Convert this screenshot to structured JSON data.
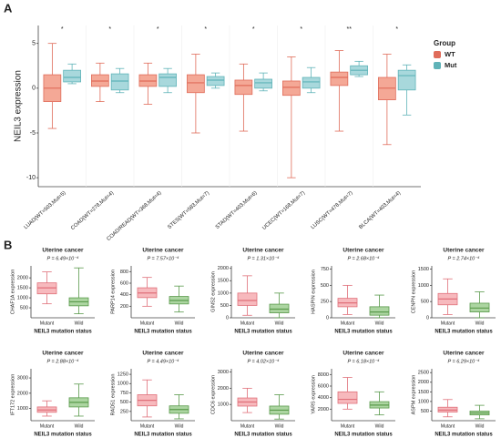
{
  "chart_data": [
    {
      "type": "box",
      "panel_label": "A",
      "ylabel": "NEIL3 expression",
      "legend_title": "Group",
      "legend": "right",
      "categories": [
        "LUAD(WT=503,Mut=5)",
        "COAD(WT=278,Mut=4)",
        "COAD/READ(WT=368,Mut=4)",
        "STES(WT=583,Mut=7)",
        "STAD(WT=403,Mut=6)",
        "UCEC(WT=168,Mut=7)",
        "LUSC(WT=478,Mut=7)",
        "BLCA(WT=403,Mut=4)"
      ],
      "annotations": [
        "*",
        "*",
        "*",
        "*",
        "*",
        "*",
        "**",
        "*"
      ],
      "ylim": [
        -11,
        7
      ],
      "yticks": [
        5,
        0,
        -5,
        -10
      ],
      "series": [
        {
          "name": "WT",
          "color": "#f4a896",
          "stroke": "#e06c5a",
          "min": [
            -4.5,
            -1.5,
            -1.8,
            -5,
            -4.8,
            -10,
            -4.8,
            -6.3
          ],
          "q1": [
            -1.5,
            0.2,
            0.2,
            -0.5,
            -0.7,
            -0.8,
            0.3,
            -1.3
          ],
          "median": [
            0,
            0.8,
            0.8,
            0.6,
            0.3,
            0.1,
            1.2,
            0
          ],
          "q3": [
            1.5,
            1.5,
            1.5,
            1.5,
            0.9,
            0.8,
            1.8,
            1.2
          ],
          "max": [
            5,
            2.8,
            2.8,
            3.8,
            2.7,
            3.5,
            4.2,
            3.8
          ]
        },
        {
          "name": "Mut",
          "color": "#a8d8dc",
          "stroke": "#5fb3b8",
          "min": [
            0.5,
            -0.5,
            -0.5,
            0,
            -0.3,
            -0.5,
            1.3,
            -3
          ],
          "q1": [
            0.7,
            -0.2,
            0.2,
            0.3,
            0,
            0,
            1.5,
            -0.2
          ],
          "median": [
            1.2,
            0.8,
            1.2,
            0.9,
            0.6,
            0.7,
            2,
            1.4
          ],
          "q3": [
            2,
            1.6,
            1.6,
            1.3,
            1,
            1.2,
            2.5,
            2
          ],
          "max": [
            2.7,
            2.2,
            2.2,
            1.7,
            1.7,
            2.3,
            3,
            2.6
          ]
        }
      ]
    },
    {
      "type": "box",
      "panel_label": "B",
      "title": "Uterine cancer",
      "subtitle": "P = 6.49×10⁻⁴",
      "ylabel": "CHAF1A expression",
      "xlabel": "NEIL3 mutation status",
      "categories": [
        "Mutant",
        "Wild"
      ],
      "colors": [
        "#f7b9bd",
        "#acd5a1"
      ],
      "strokes": [
        "#e0707a",
        "#5a9a4c"
      ],
      "ylim": [
        0,
        2600
      ],
      "yticks": [
        500,
        1000,
        1500,
        2000
      ],
      "min": [
        700,
        200
      ],
      "q1": [
        1200,
        600
      ],
      "median": [
        1500,
        800
      ],
      "q3": [
        1750,
        1000
      ],
      "max": [
        2300,
        2500
      ]
    },
    {
      "type": "box",
      "title": "Uterine cancer",
      "subtitle": "P = 7.57×10⁻⁴",
      "ylabel": "PARP14 expression",
      "xlabel": "NEIL3 mutation status",
      "categories": [
        "Mutant",
        "Wild"
      ],
      "colors": [
        "#f7b9bd",
        "#acd5a1"
      ],
      "strokes": [
        "#e0707a",
        "#5a9a4c"
      ],
      "ylim": [
        0,
        900
      ],
      "yticks": [
        200,
        400,
        600,
        800
      ],
      "min": [
        200,
        100
      ],
      "q1": [
        350,
        240
      ],
      "median": [
        430,
        300
      ],
      "q3": [
        520,
        370
      ],
      "max": [
        700,
        550
      ]
    },
    {
      "type": "box",
      "title": "Uterine cancer",
      "subtitle": "P = 1.31×10⁻⁴",
      "ylabel": "GINS2 expression",
      "xlabel": "NEIL3 mutation status",
      "categories": [
        "Mutant",
        "Wild"
      ],
      "colors": [
        "#f7b9bd",
        "#acd5a1"
      ],
      "strokes": [
        "#e0707a",
        "#5a9a4c"
      ],
      "ylim": [
        0,
        2100
      ],
      "yticks": [
        0,
        500,
        1000,
        1500,
        2000
      ],
      "min": [
        100,
        0
      ],
      "q1": [
        500,
        200
      ],
      "median": [
        700,
        350
      ],
      "q3": [
        1000,
        550
      ],
      "max": [
        1700,
        1000
      ]
    },
    {
      "type": "box",
      "title": "Uterine cancer",
      "subtitle": "P = 2.68×10⁻⁴",
      "ylabel": "HASPIN expression",
      "xlabel": "NEIL3 mutation status",
      "categories": [
        "Mutant",
        "Wild"
      ],
      "colors": [
        "#f7b9bd",
        "#acd5a1"
      ],
      "strokes": [
        "#e0707a",
        "#5a9a4c"
      ],
      "ylim": [
        0,
        800
      ],
      "yticks": [
        0,
        250,
        500,
        750
      ],
      "min": [
        50,
        0
      ],
      "q1": [
        170,
        40
      ],
      "median": [
        230,
        90
      ],
      "q3": [
        300,
        170
      ],
      "max": [
        500,
        350
      ]
    },
    {
      "type": "box",
      "title": "Uterine cancer",
      "subtitle": "P = 2.74×10⁻⁴",
      "ylabel": "CENPN expression",
      "xlabel": "NEIL3 mutation status",
      "categories": [
        "Mutant",
        "Wild"
      ],
      "colors": [
        "#f7b9bd",
        "#acd5a1"
      ],
      "strokes": [
        "#e0707a",
        "#5a9a4c"
      ],
      "ylim": [
        0,
        1600
      ],
      "yticks": [
        0,
        500,
        1000,
        1500
      ],
      "min": [
        100,
        0
      ],
      "q1": [
        400,
        180
      ],
      "median": [
        580,
        300
      ],
      "q3": [
        750,
        450
      ],
      "max": [
        1200,
        800
      ]
    },
    {
      "type": "box",
      "title": "Uterine cancer",
      "subtitle": "P = 2.88×10⁻⁴",
      "ylabel": "IFT172 expression",
      "xlabel": "NEIL3 mutation status",
      "categories": [
        "Mutant",
        "Wild"
      ],
      "colors": [
        "#f7b9bd",
        "#acd5a1"
      ],
      "strokes": [
        "#e0707a",
        "#5a9a4c"
      ],
      "ylim": [
        200,
        3600
      ],
      "yticks": [
        1000,
        2000,
        3000
      ],
      "min": [
        500,
        500
      ],
      "q1": [
        750,
        1100
      ],
      "median": [
        900,
        1400
      ],
      "q3": [
        1100,
        1700
      ],
      "max": [
        1500,
        2600
      ]
    },
    {
      "type": "box",
      "title": "Uterine cancer",
      "subtitle": "P = 4.49×10⁻⁴",
      "ylabel": "RAD51 expression",
      "xlabel": "NEIL3 mutation status",
      "categories": [
        "Mutant",
        "Wild"
      ],
      "colors": [
        "#f7b9bd",
        "#acd5a1"
      ],
      "strokes": [
        "#e0707a",
        "#5a9a4c"
      ],
      "ylim": [
        0,
        1400
      ],
      "yticks": [
        250,
        500,
        750,
        1000,
        1250
      ],
      "min": [
        100,
        50
      ],
      "q1": [
        400,
        200
      ],
      "median": [
        550,
        300
      ],
      "q3": [
        700,
        400
      ],
      "max": [
        1100,
        700
      ]
    },
    {
      "type": "box",
      "title": "Uterine cancer",
      "subtitle": "P = 4.02×10⁻⁴",
      "ylabel": "CDC6 expression",
      "xlabel": "NEIL3 mutation status",
      "categories": [
        "Mutant",
        "Wild"
      ],
      "colors": [
        "#f7b9bd",
        "#acd5a1"
      ],
      "strokes": [
        "#e0707a",
        "#5a9a4c"
      ],
      "ylim": [
        0,
        3200
      ],
      "yticks": [
        1000,
        2000,
        3000
      ],
      "min": [
        500,
        100
      ],
      "q1": [
        900,
        400
      ],
      "median": [
        1150,
        650
      ],
      "q3": [
        1400,
        900
      ],
      "max": [
        2000,
        1600
      ]
    },
    {
      "type": "box",
      "title": "Uterine cancer",
      "subtitle": "P = 6.18×10⁻⁴",
      "ylabel": "YARS expression",
      "xlabel": "NEIL3 mutation status",
      "categories": [
        "Mutant",
        "Wild"
      ],
      "colors": [
        "#f7b9bd",
        "#acd5a1"
      ],
      "strokes": [
        "#e0707a",
        "#5a9a4c"
      ],
      "ylim": [
        0,
        9000
      ],
      "yticks": [
        2000,
        4000,
        6000,
        8000
      ],
      "min": [
        2000,
        1000
      ],
      "q1": [
        3000,
        2200
      ],
      "median": [
        3700,
        2700
      ],
      "q3": [
        5000,
        3300
      ],
      "max": [
        7500,
        5000
      ]
    },
    {
      "type": "box",
      "title": "Uterine cancer",
      "subtitle": "P = 6.29×10⁻⁴",
      "ylabel": "ASPM expression",
      "xlabel": "NEIL3 mutation status",
      "categories": [
        "Mutant",
        "Wild"
      ],
      "colors": [
        "#f7b9bd",
        "#acd5a1"
      ],
      "strokes": [
        "#e0707a",
        "#5a9a4c"
      ],
      "ylim": [
        0,
        2700
      ],
      "yticks": [
        500,
        1000,
        1500,
        2000,
        2500
      ],
      "min": [
        200,
        100
      ],
      "q1": [
        450,
        300
      ],
      "median": [
        550,
        400
      ],
      "q3": [
        700,
        500
      ],
      "max": [
        1100,
        800
      ]
    }
  ]
}
